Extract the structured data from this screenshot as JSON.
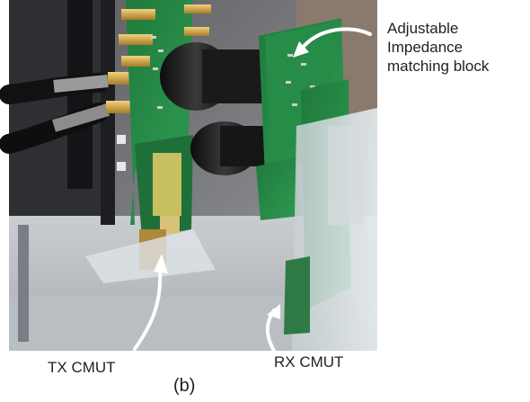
{
  "figure": {
    "caption": "(b)",
    "annotations": {
      "impedance_block": [
        "Adjustable",
        "Impedance",
        "matching block"
      ],
      "tx": "TX CMUT",
      "rx": "RX CMUT"
    }
  }
}
